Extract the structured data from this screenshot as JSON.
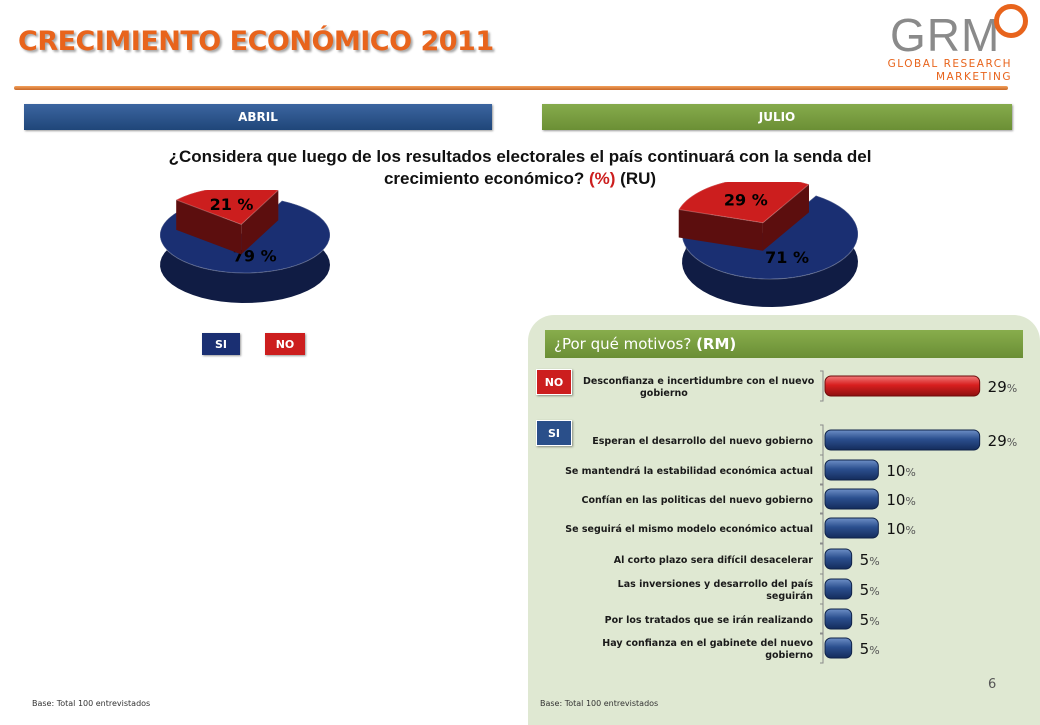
{
  "title": "CRECIMIENTO ECONÓMICO 2011",
  "logo": {
    "name": "GRM",
    "line1": "GLOBAL RESEARCH",
    "line2": "MARKETING"
  },
  "headers": {
    "left": "ABRIL",
    "right": "JULIO"
  },
  "question": {
    "line1": "¿Considera que luego de los resultados electorales el país continuará con la senda del",
    "line2": "crecimiento económico?",
    "unit": "(%)",
    "mode": "(RU)"
  },
  "legend": {
    "si": "SI",
    "no": "NO"
  },
  "colors": {
    "si": "#1a2f72",
    "no": "#cc1e1e",
    "accent": "#e8641c",
    "green": "#6f933a"
  },
  "motives": {
    "title": "¿Por qué motivos?",
    "mode": "(RM)",
    "tag_no": "NO",
    "tag_si": "SI"
  },
  "footer": {
    "left": "Base: Total  100 entrevistados",
    "right": "Base: Total  100 entrevistados"
  },
  "page_number": "6",
  "chart_data": [
    {
      "type": "pie",
      "title": "ABRIL",
      "labels": [
        "SI",
        "NO"
      ],
      "values": [
        79,
        21
      ],
      "value_labels": [
        "79 %",
        "21 %"
      ]
    },
    {
      "type": "pie",
      "title": "JULIO",
      "labels": [
        "SI",
        "NO"
      ],
      "values": [
        71,
        29
      ],
      "value_labels": [
        "71 %",
        "29 %"
      ]
    },
    {
      "type": "bar",
      "orientation": "horizontal",
      "title": "¿Por qué motivos? (RM)",
      "unit": "%",
      "groups": [
        {
          "name": "NO",
          "categories": [
            "Desconfianza e incertidumbre con el nuevo gobierno"
          ],
          "values": [
            29
          ]
        },
        {
          "name": "SI",
          "categories": [
            "Esperan el desarrollo del nuevo gobierno",
            "Se mantendrá la estabilidad económica actual",
            "Confían en las politicas del nuevo gobierno",
            "Se seguirá el mismo modelo económico actual",
            "Al corto plazo sera difícil desacelerar",
            "Las inversiones y desarrollo del país seguirán",
            "Por los tratados que se irán realizando",
            "Hay confianza en el gabinete del nuevo gobierno"
          ],
          "values": [
            29,
            10,
            10,
            10,
            5,
            5,
            5,
            5
          ]
        }
      ],
      "xlim": [
        0,
        30
      ]
    }
  ]
}
